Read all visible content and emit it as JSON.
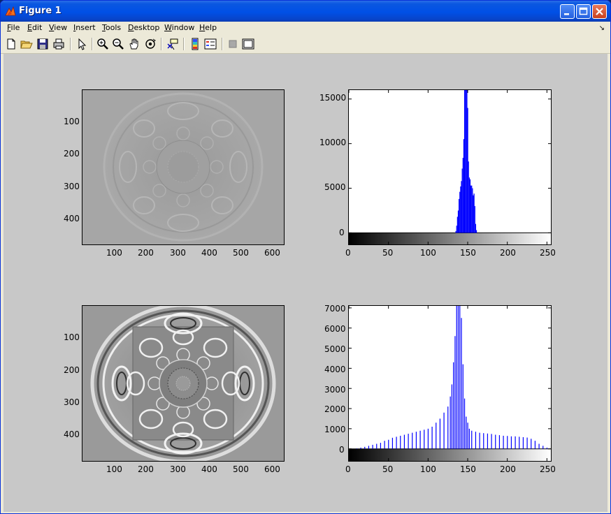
{
  "window": {
    "title": "Figure 1",
    "buttons": [
      "minimize",
      "maximize",
      "close"
    ]
  },
  "menubar": {
    "items": [
      "File",
      "Edit",
      "View",
      "Insert",
      "Tools",
      "Desktop",
      "Window",
      "Help"
    ]
  },
  "toolbar": {
    "tools": [
      "new-figure-icon",
      "open-file-icon",
      "save-icon",
      "print-icon",
      "edit-plot-icon",
      "zoom-in-icon",
      "zoom-out-icon",
      "pan-icon",
      "rotate-3d-icon",
      "data-cursor-icon",
      "colorbar-icon",
      "legend-icon",
      "hide-plot-tools-icon",
      "show-plot-tools-icon"
    ]
  },
  "colors": {
    "bar": "#0000ff",
    "figure_bg": "#c8c8c8"
  },
  "chart_data": [
    {
      "type": "image",
      "title": "",
      "yticks": [
        "100",
        "200",
        "300",
        "400"
      ],
      "xticks": [
        "100",
        "200",
        "300",
        "400",
        "500",
        "600"
      ],
      "xlim": [
        0,
        640
      ],
      "ylim": [
        480,
        0
      ]
    },
    {
      "type": "bar",
      "title": "",
      "yticks": [
        "15000",
        "10000",
        "5000",
        "0"
      ],
      "xticks": [
        "0",
        "50",
        "100",
        "150",
        "200",
        "250"
      ],
      "xlim": [
        0,
        255
      ],
      "ylim": [
        -1300,
        16000
      ],
      "colorbar": "gray",
      "x": [
        135,
        136,
        137,
        138,
        139,
        140,
        141,
        142,
        143,
        144,
        145,
        146,
        147,
        148,
        149,
        150,
        151,
        152,
        153,
        154,
        155,
        156,
        157,
        158,
        159,
        160,
        161
      ],
      "values": [
        200,
        800,
        1800,
        2500,
        3800,
        4600,
        5200,
        5800,
        7200,
        8400,
        10500,
        16000,
        16000,
        16000,
        16000,
        14000,
        8000,
        6200,
        6000,
        5300,
        5300,
        5000,
        4200,
        4400,
        3000,
        1000,
        300
      ]
    },
    {
      "type": "image",
      "title": "",
      "yticks": [
        "100",
        "200",
        "300",
        "400"
      ],
      "xticks": [
        "100",
        "200",
        "300",
        "400",
        "500",
        "600"
      ],
      "xlim": [
        0,
        640
      ],
      "ylim": [
        480,
        0
      ]
    },
    {
      "type": "bar",
      "title": "",
      "yticks": [
        "7000",
        "6000",
        "5000",
        "4000",
        "3000",
        "2000",
        "1000",
        "0"
      ],
      "xticks": [
        "0",
        "50",
        "100",
        "150",
        "200",
        "250"
      ],
      "xlim": [
        0,
        255
      ],
      "ylim": [
        -600,
        7100
      ],
      "colorbar": "gray",
      "x": [
        10,
        15,
        20,
        25,
        30,
        35,
        40,
        45,
        50,
        55,
        60,
        65,
        70,
        75,
        80,
        85,
        90,
        95,
        100,
        105,
        110,
        115,
        120,
        125,
        128,
        130,
        132,
        134,
        136,
        138,
        140,
        142,
        144,
        146,
        148,
        150,
        152,
        155,
        160,
        165,
        170,
        175,
        180,
        185,
        190,
        195,
        200,
        205,
        210,
        215,
        220,
        225,
        230,
        235,
        240,
        245,
        250
      ],
      "values": [
        20,
        60,
        100,
        150,
        200,
        250,
        300,
        400,
        450,
        550,
        600,
        650,
        700,
        750,
        800,
        850,
        900,
        950,
        1000,
        1100,
        1300,
        1500,
        1800,
        2100,
        2600,
        3200,
        4300,
        5600,
        7100,
        7100,
        7100,
        6500,
        4200,
        2500,
        1600,
        1300,
        1000,
        900,
        850,
        800,
        780,
        760,
        740,
        700,
        680,
        650,
        640,
        620,
        620,
        600,
        580,
        560,
        500,
        400,
        250,
        150,
        60
      ]
    }
  ]
}
